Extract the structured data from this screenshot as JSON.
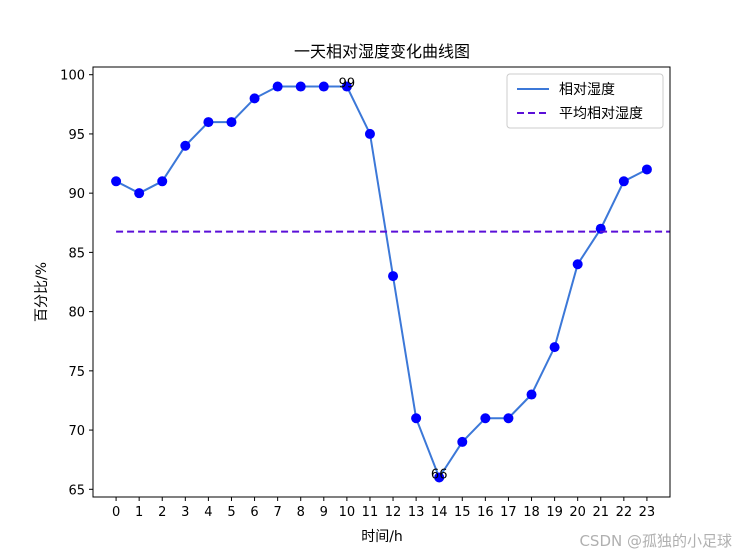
{
  "chart_data": {
    "type": "line",
    "title": "一天相对湿度变化曲线图",
    "xlabel": "时间/h",
    "ylabel": "百分比/%",
    "x": [
      0,
      1,
      2,
      3,
      4,
      5,
      6,
      7,
      8,
      9,
      10,
      11,
      12,
      13,
      14,
      15,
      16,
      17,
      18,
      19,
      20,
      21,
      22,
      23
    ],
    "xlim": [
      -1,
      24
    ],
    "ylim": [
      64.35,
      100.65
    ],
    "yticks": [
      65,
      70,
      75,
      80,
      85,
      90,
      95,
      100
    ],
    "series": [
      {
        "name": "相对湿度",
        "style": "solid",
        "color": "#3c78d8",
        "marker_color": "#0000ff",
        "values": [
          91,
          90,
          91,
          94,
          96,
          96,
          98,
          99,
          99,
          99,
          99,
          95,
          83,
          71,
          66,
          69,
          71,
          71,
          73,
          77,
          84,
          87,
          91,
          92
        ]
      },
      {
        "name": "平均相对湿度",
        "style": "dashed",
        "color": "#5a0fd8",
        "values_constant": 86.75,
        "x_range": [
          0,
          24
        ]
      }
    ],
    "annotations": [
      {
        "x": 10,
        "y": 99,
        "text": "99"
      },
      {
        "x": 14,
        "y": 66,
        "text": "66"
      }
    ],
    "legend_position": "top-right",
    "grid": false
  },
  "watermark": "CSDN @孤独的小足球"
}
